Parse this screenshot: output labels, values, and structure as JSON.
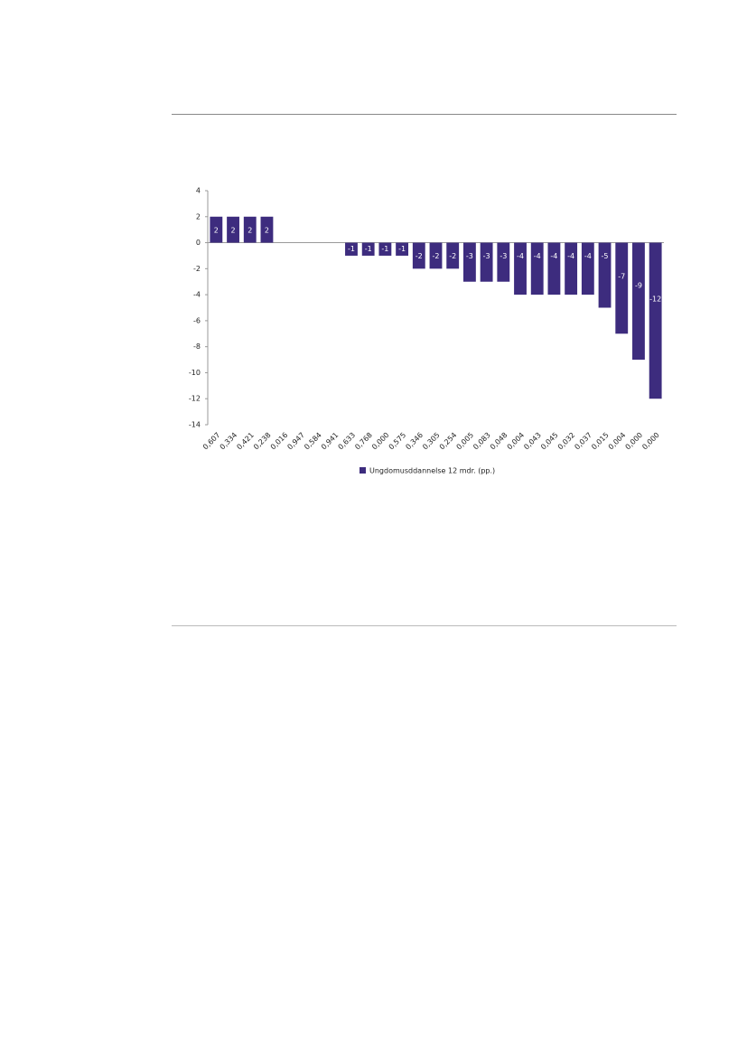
{
  "chart_data": {
    "type": "bar",
    "categories": [
      "0,607",
      "0,334",
      "0,421",
      "0,238",
      "0,016",
      "0,947",
      "0,584",
      "0,941",
      "0,633",
      "0,768",
      "0,000",
      "0,575",
      "0,346",
      "0,305",
      "0,254",
      "0,005",
      "0,083",
      "0,048",
      "0,004",
      "0,043",
      "0,045",
      "0,032",
      "0,037",
      "0,015",
      "0,004",
      "0,000",
      "0,000"
    ],
    "series": [
      {
        "name": "Ungdomusddannelse 12 mdr. (pp.)",
        "color": "#3d2c7e",
        "values": [
          2,
          2,
          2,
          2,
          0,
          0,
          0,
          0,
          -1,
          -1,
          -1,
          -1,
          -2,
          -2,
          -2,
          -3,
          -3,
          -3,
          -4,
          -4,
          -4,
          -4,
          -4,
          -5,
          -7,
          -9,
          -12
        ]
      }
    ],
    "ylim": [
      -14,
      4
    ],
    "yticks": [
      -14,
      -12,
      -10,
      -8,
      -6,
      -4,
      -2,
      0,
      2,
      4
    ]
  }
}
